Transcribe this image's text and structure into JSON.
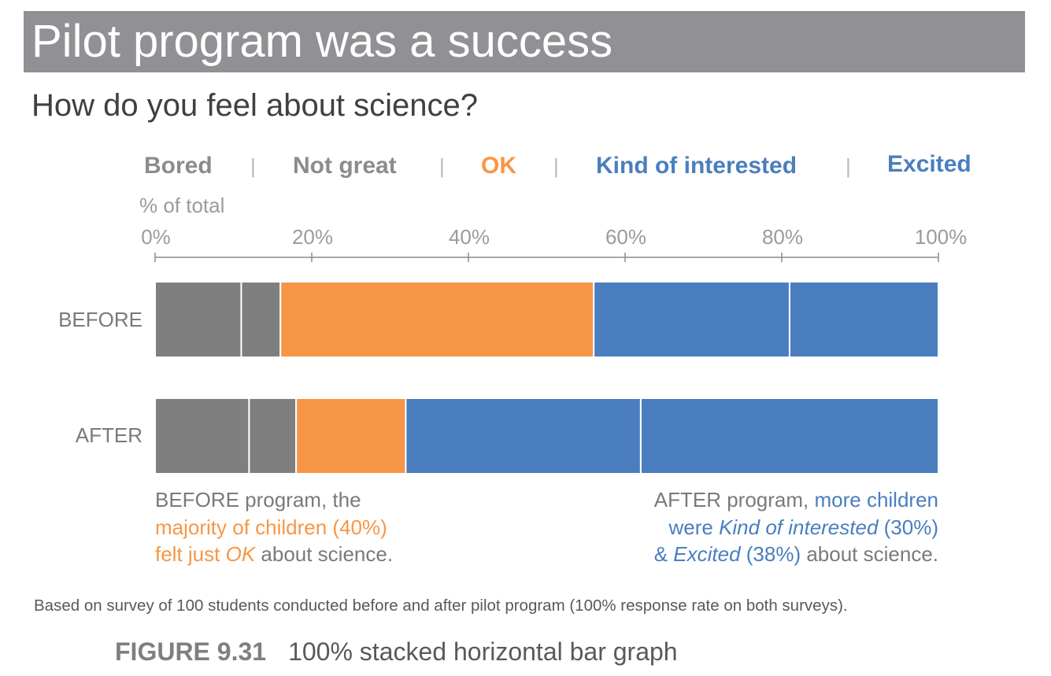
{
  "header": {
    "title": "Pilot program was a success",
    "subtitle": "How do you feel about science?"
  },
  "colors": {
    "title_bar": "#919195",
    "grey": "#7f7f7f",
    "orange": "#f79646",
    "blue": "#4a7ebf",
    "legend_grey": "#8c8c8c"
  },
  "chart_data": {
    "type": "bar",
    "orientation": "horizontal",
    "stacked": "100%",
    "xlabel": "% of total",
    "xlim": [
      0,
      100
    ],
    "xticks": [
      "0%",
      "20%",
      "40%",
      "60%",
      "80%",
      "100%"
    ],
    "grid": false,
    "legend_placement": "top",
    "categories": [
      "BEFORE",
      "AFTER"
    ],
    "series": [
      {
        "name": "Bored",
        "color": "#7f7f7f",
        "values": [
          11,
          12
        ]
      },
      {
        "name": "Not great",
        "color": "#7f7f7f",
        "values": [
          5,
          6
        ]
      },
      {
        "name": "OK",
        "color": "#f79646",
        "values": [
          40,
          14
        ]
      },
      {
        "name": "Kind of interested",
        "color": "#4a7ebf",
        "values": [
          25,
          30
        ]
      },
      {
        "name": "Excited",
        "color": "#4a7ebf",
        "values": [
          19,
          38
        ]
      }
    ]
  },
  "legend": {
    "bored": "Bored",
    "not_great": "Not great",
    "ok": "OK",
    "kind_of_interested": "Kind of interested",
    "excited": "Excited",
    "separator": "|"
  },
  "annotations": {
    "before": {
      "line1": "BEFORE program, the",
      "line2": "majority of children (40%)",
      "line3_a": "felt just ",
      "line3_b": "OK",
      "line3_c": " about science."
    },
    "after": {
      "line1_a": "AFTER program, ",
      "line1_b": "more children",
      "line2_a": "were ",
      "line2_b": "Kind of interested",
      "line2_c": " (30%)",
      "line3_a": "& ",
      "line3_b": "Excited",
      "line3_c": " (38%)",
      "line3_d": " about science."
    }
  },
  "footnote": "Based on survey of 100 students conducted before and after pilot program (100% response rate on both surveys).",
  "caption": {
    "number": "FIGURE 9.31",
    "text": "100% stacked horizontal bar graph"
  }
}
